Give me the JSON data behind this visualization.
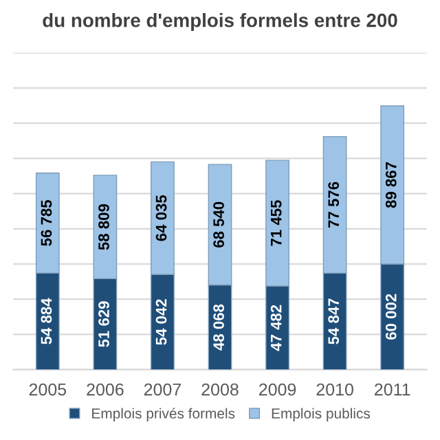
{
  "chart_data": {
    "type": "bar",
    "stacked": true,
    "title": "du nombre d'emplois formels entre 200",
    "categories": [
      "2005",
      "2006",
      "2007",
      "2008",
      "2009",
      "2010",
      "2011"
    ],
    "series": [
      {
        "name": "Emplois privés formels",
        "color": "#1f4e79",
        "values": [
          54884,
          51629,
          54042,
          48068,
          47482,
          54847,
          60002
        ],
        "value_labels": [
          "54 884",
          "51 629",
          "54 042",
          "48 068",
          "47 482",
          "54 847",
          "60 002"
        ]
      },
      {
        "name": "Emplois publics",
        "color": "#9dc3e6",
        "values": [
          56785,
          58809,
          64035,
          68540,
          71455,
          77576,
          89867
        ],
        "value_labels": [
          "56 785",
          "58 809",
          "64 035",
          "68 540",
          "71 455",
          "77 576",
          "89 867"
        ]
      }
    ],
    "ylim": [
      0,
      180000
    ],
    "yticks": [
      {
        "value": 0,
        "label": null
      },
      {
        "value": 20000,
        "label": null
      },
      {
        "value": 40000,
        "label": null
      },
      {
        "value": 60000,
        "label": null
      },
      {
        "value": 80000,
        "label": null
      },
      {
        "value": 100000,
        "label": null
      },
      {
        "value": 120000,
        "label": null
      },
      {
        "value": 140000,
        "label": null
      },
      {
        "value": 160000,
        "label": null
      },
      {
        "value": 180000,
        "label": null
      }
    ],
    "tick_labels": "x",
    "grid": "y",
    "legend": "bottom"
  }
}
